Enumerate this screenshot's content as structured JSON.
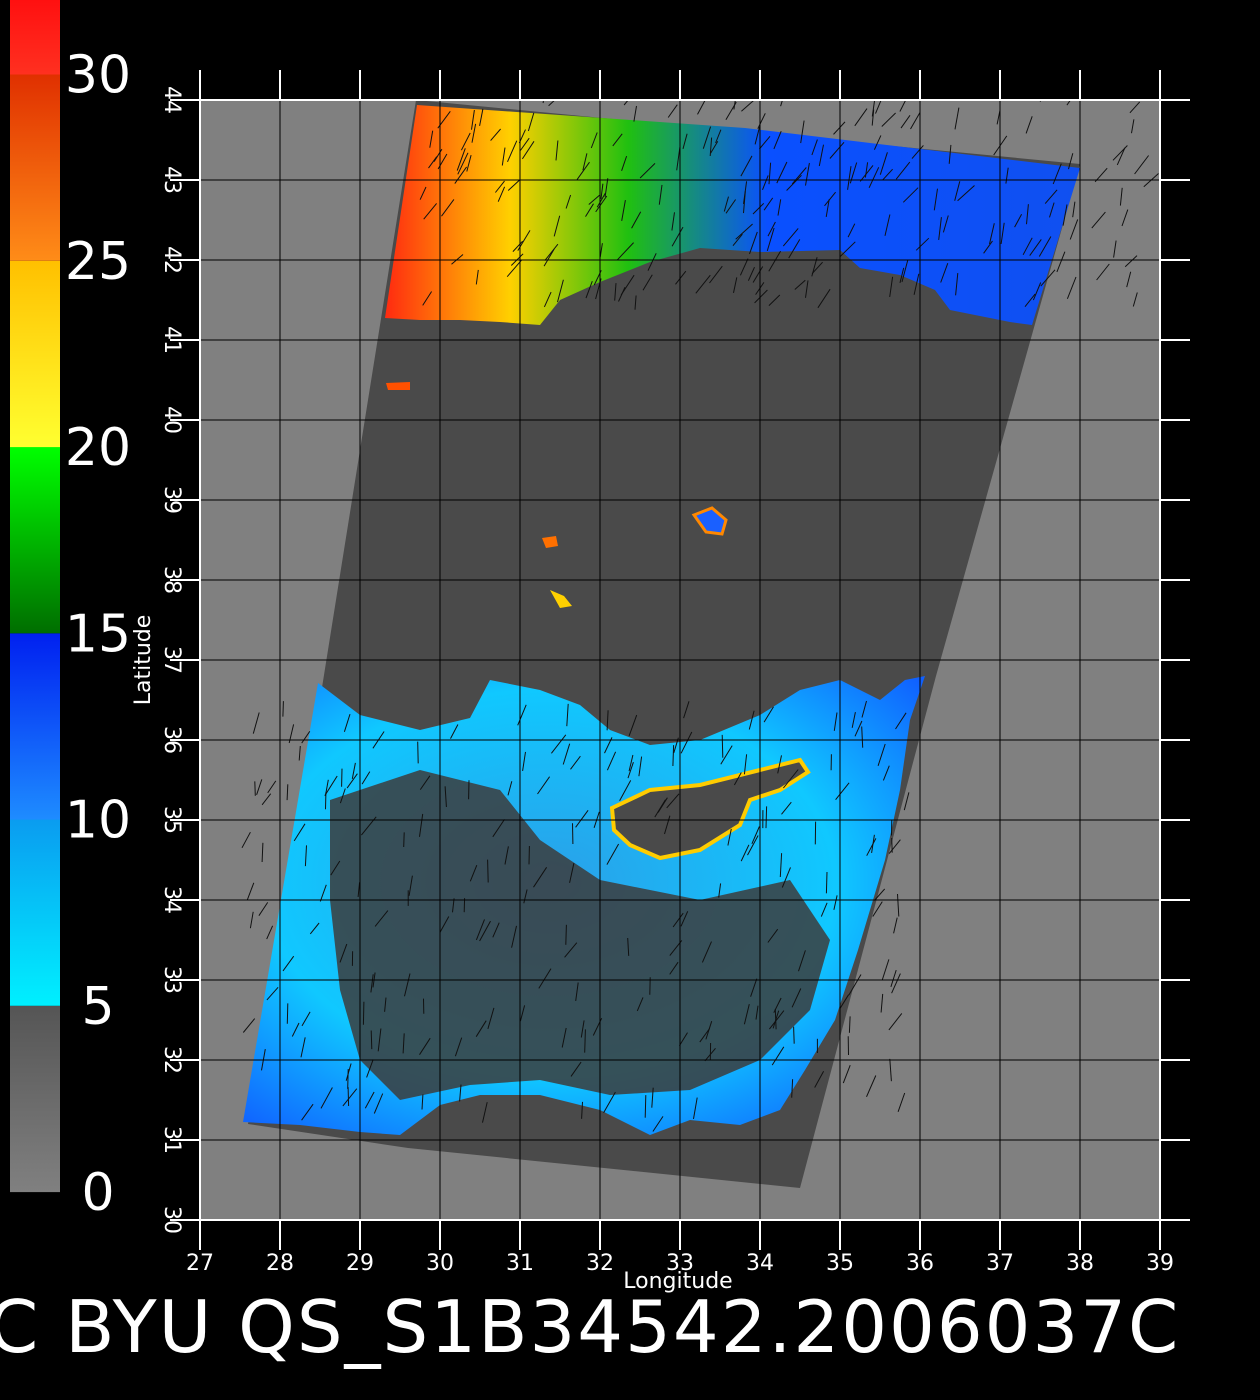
{
  "map": {
    "xlabel": "Longitude",
    "ylabel": "Latitude",
    "lon_range": [
      27,
      39
    ],
    "lat_range": [
      30,
      44
    ],
    "lon_ticks": [
      "27",
      "28",
      "29",
      "30",
      "31",
      "32",
      "33",
      "34",
      "35",
      "36",
      "37",
      "38",
      "39"
    ],
    "lat_ticks": [
      "30",
      "31",
      "32",
      "33",
      "34",
      "35",
      "36",
      "37",
      "38",
      "39",
      "40",
      "41",
      "42",
      "43",
      "44"
    ],
    "grid": true,
    "footer_text": "C  BYU  QS_S1B34542.2006037C",
    "swath_corners_lonlat": [
      [
        29.7,
        44.0
      ],
      [
        38.0,
        43.2
      ],
      [
        36.2,
        36.8
      ],
      [
        34.5,
        30.4
      ],
      [
        29.6,
        30.9
      ],
      [
        27.6,
        31.2
      ],
      [
        28.5,
        36.5
      ]
    ],
    "land_color": "#808080",
    "swath_land_color": "#4a4a4a"
  },
  "colorbar": {
    "labels": [
      "30",
      "25",
      "20",
      "15",
      "10",
      "5",
      "0"
    ],
    "values": [
      30,
      25,
      20,
      15,
      10,
      5,
      0
    ],
    "range": [
      0,
      32
    ],
    "segments": [
      {
        "from": 0,
        "to": 5,
        "color_top": "#555555",
        "color_bottom": "#808080"
      },
      {
        "from": 5,
        "to": 10,
        "color_top": "#0a9cf0",
        "color_bottom": "#00f0ff"
      },
      {
        "from": 10,
        "to": 15,
        "color_top": "#0020f0",
        "color_bottom": "#1e8cff"
      },
      {
        "from": 15,
        "to": 20,
        "color_top": "#00ff00",
        "color_bottom": "#006e00"
      },
      {
        "from": 20,
        "to": 25,
        "color_top": "#ffc000",
        "color_bottom": "#ffff30"
      },
      {
        "from": 25,
        "to": 30,
        "color_top": "#e03000",
        "color_bottom": "#ff8c18"
      },
      {
        "from": 30,
        "to": 32,
        "color_top": "#ff1010",
        "color_bottom": "#ff3020"
      }
    ]
  },
  "wind_field": {
    "regions": [
      {
        "name": "black-sea",
        "colors": [
          "#ff3a10",
          "#ffd400",
          "#00c000",
          "#0050ff"
        ]
      },
      {
        "name": "mediterranean",
        "colors": [
          "#00d8ff",
          "#1a70ff",
          "#0030f0"
        ]
      }
    ]
  }
}
